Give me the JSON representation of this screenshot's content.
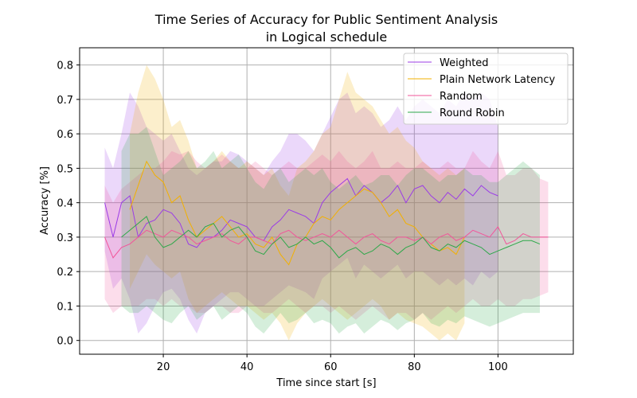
{
  "chart_data": {
    "type": "line",
    "title_line1": "Time Series of Accuracy for Public Sentiment Analysis",
    "title_line2": "in Logical schedule",
    "xlabel": "Time since start [s]",
    "ylabel": "Accuracy [%]",
    "xlim": [
      0,
      118
    ],
    "ylim": [
      -0.04,
      0.85
    ],
    "xticks": [
      20,
      40,
      60,
      80,
      100
    ],
    "yticks": [
      0.0,
      0.1,
      0.2,
      0.3,
      0.4,
      0.5,
      0.6,
      0.7,
      0.8
    ],
    "grid": true,
    "legend_position": "top-right",
    "series": [
      {
        "name": "Weighted",
        "color": "#9b3ce6",
        "x": [
          6,
          8,
          10,
          12,
          14,
          16,
          18,
          20,
          22,
          24,
          26,
          28,
          30,
          32,
          34,
          36,
          38,
          40,
          42,
          44,
          46,
          48,
          50,
          52,
          54,
          56,
          58,
          60,
          62,
          64,
          66,
          68,
          70,
          72,
          74,
          76,
          78,
          80,
          82,
          84,
          86,
          88,
          90,
          92,
          94,
          96,
          98,
          100
        ],
        "y": [
          0.4,
          0.3,
          0.4,
          0.42,
          0.3,
          0.34,
          0.35,
          0.38,
          0.37,
          0.34,
          0.28,
          0.27,
          0.3,
          0.3,
          0.32,
          0.35,
          0.34,
          0.33,
          0.3,
          0.29,
          0.33,
          0.35,
          0.38,
          0.37,
          0.36,
          0.34,
          0.4,
          0.43,
          0.45,
          0.47,
          0.42,
          0.45,
          0.43,
          0.4,
          0.42,
          0.45,
          0.4,
          0.44,
          0.45,
          0.42,
          0.4,
          0.43,
          0.41,
          0.44,
          0.42,
          0.45,
          0.43,
          0.42
        ],
        "upper": [
          0.56,
          0.5,
          0.6,
          0.72,
          0.68,
          0.62,
          0.6,
          0.58,
          0.6,
          0.55,
          0.5,
          0.48,
          0.5,
          0.52,
          0.52,
          0.55,
          0.54,
          0.52,
          0.5,
          0.48,
          0.52,
          0.55,
          0.6,
          0.6,
          0.58,
          0.55,
          0.6,
          0.65,
          0.7,
          0.72,
          0.66,
          0.68,
          0.66,
          0.62,
          0.64,
          0.68,
          0.64,
          0.68,
          0.7,
          0.68,
          0.66,
          0.7,
          0.68,
          0.72,
          0.7,
          0.72,
          0.7,
          0.62
        ],
        "lower": [
          0.26,
          0.15,
          0.18,
          0.12,
          0.02,
          0.05,
          0.1,
          0.14,
          0.15,
          0.12,
          0.06,
          0.02,
          0.08,
          0.1,
          0.12,
          0.14,
          0.14,
          0.12,
          0.1,
          0.1,
          0.12,
          0.14,
          0.16,
          0.15,
          0.14,
          0.12,
          0.18,
          0.2,
          0.22,
          0.24,
          0.18,
          0.22,
          0.2,
          0.18,
          0.2,
          0.22,
          0.18,
          0.2,
          0.2,
          0.18,
          0.16,
          0.18,
          0.16,
          0.18,
          0.16,
          0.2,
          0.18,
          0.2
        ]
      },
      {
        "name": "Plain Network Latency",
        "color": "#f2b000",
        "x": [
          12,
          14,
          16,
          18,
          20,
          22,
          24,
          26,
          28,
          30,
          32,
          34,
          36,
          38,
          40,
          42,
          44,
          46,
          48,
          50,
          52,
          54,
          56,
          58,
          60,
          62,
          64,
          66,
          68,
          70,
          72,
          74,
          76,
          78,
          80,
          82,
          84,
          86,
          88,
          90,
          92
        ],
        "y": [
          0.38,
          0.45,
          0.52,
          0.48,
          0.46,
          0.4,
          0.42,
          0.35,
          0.3,
          0.32,
          0.34,
          0.36,
          0.33,
          0.3,
          0.31,
          0.28,
          0.27,
          0.3,
          0.25,
          0.22,
          0.28,
          0.3,
          0.34,
          0.36,
          0.35,
          0.38,
          0.4,
          0.42,
          0.44,
          0.43,
          0.4,
          0.36,
          0.38,
          0.34,
          0.33,
          0.3,
          0.28,
          0.26,
          0.27,
          0.25,
          0.3
        ],
        "upper": [
          0.6,
          0.72,
          0.8,
          0.76,
          0.7,
          0.62,
          0.64,
          0.58,
          0.5,
          0.5,
          0.52,
          0.55,
          0.52,
          0.5,
          0.52,
          0.5,
          0.48,
          0.5,
          0.45,
          0.42,
          0.5,
          0.52,
          0.55,
          0.6,
          0.62,
          0.7,
          0.78,
          0.72,
          0.7,
          0.68,
          0.64,
          0.6,
          0.62,
          0.58,
          0.56,
          0.52,
          0.5,
          0.48,
          0.5,
          0.48,
          0.5
        ],
        "lower": [
          0.15,
          0.2,
          0.25,
          0.22,
          0.2,
          0.18,
          0.2,
          0.12,
          0.08,
          0.1,
          0.12,
          0.14,
          0.12,
          0.1,
          0.1,
          0.08,
          0.06,
          0.08,
          0.05,
          0.0,
          0.05,
          0.08,
          0.1,
          0.12,
          0.1,
          0.08,
          0.06,
          0.08,
          0.1,
          0.12,
          0.1,
          0.06,
          0.08,
          0.06,
          0.05,
          0.04,
          0.02,
          0.0,
          0.02,
          0.0,
          0.05
        ]
      },
      {
        "name": "Random",
        "color": "#f2559a",
        "x": [
          6,
          8,
          10,
          12,
          14,
          16,
          18,
          20,
          22,
          24,
          26,
          28,
          30,
          32,
          34,
          36,
          38,
          40,
          42,
          44,
          46,
          48,
          50,
          52,
          54,
          56,
          58,
          60,
          62,
          64,
          66,
          68,
          70,
          72,
          74,
          76,
          78,
          80,
          82,
          84,
          86,
          88,
          90,
          92,
          94,
          96,
          98,
          100,
          102,
          104,
          106,
          108,
          110,
          112
        ],
        "y": [
          0.3,
          0.24,
          0.27,
          0.28,
          0.3,
          0.32,
          0.31,
          0.3,
          0.32,
          0.31,
          0.3,
          0.28,
          0.29,
          0.3,
          0.31,
          0.29,
          0.28,
          0.3,
          0.3,
          0.29,
          0.28,
          0.31,
          0.32,
          0.3,
          0.29,
          0.3,
          0.31,
          0.3,
          0.32,
          0.3,
          0.28,
          0.3,
          0.31,
          0.29,
          0.28,
          0.3,
          0.3,
          0.29,
          0.3,
          0.28,
          0.3,
          0.31,
          0.29,
          0.3,
          0.32,
          0.31,
          0.3,
          0.33,
          0.28,
          0.29,
          0.31,
          0.3,
          0.3,
          0.3
        ],
        "upper": [
          0.45,
          0.4,
          0.44,
          0.46,
          0.48,
          0.5,
          0.5,
          0.52,
          0.55,
          0.54,
          0.55,
          0.52,
          0.5,
          0.52,
          0.54,
          0.52,
          0.5,
          0.5,
          0.52,
          0.5,
          0.48,
          0.5,
          0.52,
          0.5,
          0.5,
          0.52,
          0.54,
          0.52,
          0.55,
          0.52,
          0.5,
          0.52,
          0.55,
          0.5,
          0.5,
          0.52,
          0.5,
          0.5,
          0.52,
          0.5,
          0.5,
          0.52,
          0.5,
          0.5,
          0.55,
          0.52,
          0.5,
          0.55,
          0.48,
          0.48,
          0.5,
          0.5,
          0.47,
          0.46
        ],
        "lower": [
          0.12,
          0.08,
          0.1,
          0.1,
          0.1,
          0.12,
          0.12,
          0.1,
          0.12,
          0.1,
          0.1,
          0.08,
          0.08,
          0.1,
          0.1,
          0.08,
          0.08,
          0.1,
          0.1,
          0.08,
          0.08,
          0.1,
          0.12,
          0.1,
          0.08,
          0.1,
          0.1,
          0.08,
          0.1,
          0.08,
          0.06,
          0.08,
          0.1,
          0.08,
          0.06,
          0.08,
          0.08,
          0.06,
          0.08,
          0.06,
          0.08,
          0.1,
          0.08,
          0.1,
          0.12,
          0.1,
          0.1,
          0.12,
          0.1,
          0.1,
          0.12,
          0.12,
          0.13,
          0.14
        ]
      },
      {
        "name": "Round Robin",
        "color": "#2ea84a",
        "x": [
          10,
          12,
          14,
          16,
          18,
          20,
          22,
          24,
          26,
          28,
          30,
          32,
          34,
          36,
          38,
          40,
          42,
          44,
          46,
          48,
          50,
          52,
          54,
          56,
          58,
          60,
          62,
          64,
          66,
          68,
          70,
          72,
          74,
          76,
          78,
          80,
          82,
          84,
          86,
          88,
          90,
          92,
          94,
          96,
          98,
          100,
          102,
          104,
          106,
          108,
          110
        ],
        "y": [
          0.3,
          0.32,
          0.34,
          0.36,
          0.3,
          0.27,
          0.28,
          0.3,
          0.32,
          0.3,
          0.33,
          0.34,
          0.3,
          0.32,
          0.33,
          0.3,
          0.26,
          0.25,
          0.28,
          0.3,
          0.27,
          0.28,
          0.3,
          0.28,
          0.29,
          0.27,
          0.24,
          0.26,
          0.27,
          0.25,
          0.26,
          0.28,
          0.27,
          0.25,
          0.27,
          0.28,
          0.3,
          0.27,
          0.26,
          0.28,
          0.27,
          0.29,
          0.28,
          0.27,
          0.25,
          0.26,
          0.27,
          0.28,
          0.29,
          0.29,
          0.28
        ],
        "upper": [
          0.55,
          0.6,
          0.6,
          0.62,
          0.55,
          0.48,
          0.5,
          0.52,
          0.55,
          0.5,
          0.52,
          0.55,
          0.5,
          0.52,
          0.54,
          0.5,
          0.46,
          0.44,
          0.48,
          0.5,
          0.46,
          0.48,
          0.5,
          0.48,
          0.5,
          0.46,
          0.44,
          0.46,
          0.48,
          0.45,
          0.46,
          0.48,
          0.48,
          0.45,
          0.48,
          0.5,
          0.5,
          0.48,
          0.46,
          0.48,
          0.48,
          0.5,
          0.48,
          0.48,
          0.46,
          0.46,
          0.48,
          0.5,
          0.52,
          0.5,
          0.48
        ],
        "lower": [
          0.1,
          0.08,
          0.08,
          0.1,
          0.08,
          0.06,
          0.05,
          0.08,
          0.1,
          0.06,
          0.08,
          0.1,
          0.06,
          0.08,
          0.1,
          0.08,
          0.04,
          0.02,
          0.05,
          0.08,
          0.05,
          0.06,
          0.08,
          0.05,
          0.06,
          0.05,
          0.02,
          0.04,
          0.05,
          0.02,
          0.04,
          0.06,
          0.05,
          0.03,
          0.05,
          0.06,
          0.08,
          0.05,
          0.04,
          0.06,
          0.05,
          0.07,
          0.06,
          0.05,
          0.04,
          0.05,
          0.06,
          0.07,
          0.08,
          0.08,
          0.08
        ]
      }
    ]
  }
}
